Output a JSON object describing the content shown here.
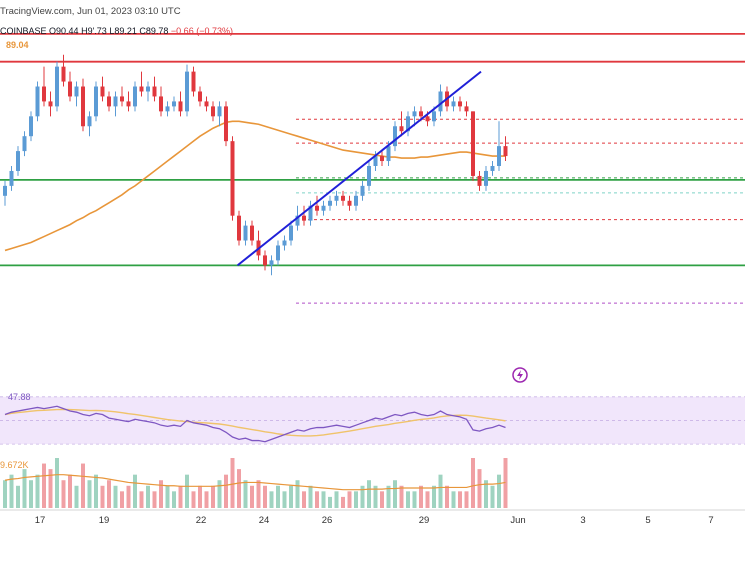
{
  "header": {
    "source_line": "TracingView.com, Jun 01, 2023 03:10 UTC",
    "symbol": "COINBASE",
    "open": "O90.44",
    "high": "H9'.73",
    "low": "L89.21",
    "close": "C89.78",
    "change": "−0.66 (−0.73%)",
    "ma_value": "89.04"
  },
  "rsi_label": "47.88",
  "volume_label": "9.672K",
  "colors": {
    "up": "#5b9bd5",
    "down": "#e0383e",
    "ma": "#e8963a",
    "trendline": "#2020d8",
    "resistance": "#e0383e",
    "support": "#2ea043",
    "rsi": "#7e57c2",
    "rsi_band": "#f1e6fb"
  },
  "chart_data": [
    {
      "type": "candlestick",
      "x_tick_labels": [
        "17",
        "19",
        "22",
        "24",
        "26",
        "29",
        "Jun",
        "3",
        "5",
        "7"
      ],
      "candles": [
        [
          84.0,
          85.5,
          83.0,
          85.0
        ],
        [
          85.0,
          87.0,
          84.5,
          86.5
        ],
        [
          86.5,
          89.0,
          86.0,
          88.5
        ],
        [
          88.5,
          90.5,
          88.0,
          90.0
        ],
        [
          90.0,
          92.5,
          89.5,
          92.0
        ],
        [
          92.0,
          95.5,
          91.5,
          95.0
        ],
        [
          95.0,
          97.0,
          93.0,
          93.5
        ],
        [
          93.5,
          94.5,
          92.0,
          93.0
        ],
        [
          93.0,
          97.5,
          92.5,
          97.0
        ],
        [
          97.0,
          98.2,
          95.0,
          95.5
        ],
        [
          95.5,
          96.5,
          93.5,
          94.0
        ],
        [
          94.0,
          95.5,
          93.0,
          95.0
        ],
        [
          95.0,
          95.8,
          90.5,
          91.0
        ],
        [
          91.0,
          92.5,
          90.0,
          92.0
        ],
        [
          92.0,
          95.5,
          91.5,
          95.0
        ],
        [
          95.0,
          96.0,
          93.5,
          94.0
        ],
        [
          94.0,
          94.5,
          92.5,
          93.0
        ],
        [
          93.0,
          94.5,
          92.0,
          94.0
        ],
        [
          94.0,
          95.0,
          93.0,
          93.5
        ],
        [
          93.5,
          94.5,
          92.5,
          93.0
        ],
        [
          93.0,
          95.5,
          92.5,
          95.0
        ],
        [
          95.0,
          96.5,
          94.0,
          94.5
        ],
        [
          94.5,
          95.5,
          93.5,
          95.0
        ],
        [
          95.0,
          96.0,
          93.5,
          94.0
        ],
        [
          94.0,
          95.0,
          92.0,
          92.5
        ],
        [
          92.5,
          93.5,
          92.0,
          93.0
        ],
        [
          93.0,
          94.0,
          92.5,
          93.5
        ],
        [
          93.5,
          94.5,
          92.0,
          92.5
        ],
        [
          92.5,
          97.2,
          92.0,
          96.5
        ],
        [
          96.5,
          97.0,
          94.0,
          94.5
        ],
        [
          94.5,
          95.0,
          93.0,
          93.5
        ],
        [
          93.5,
          94.0,
          92.5,
          93.0
        ],
        [
          93.0,
          93.5,
          91.5,
          92.0
        ],
        [
          92.0,
          93.5,
          91.0,
          93.0
        ],
        [
          93.0,
          93.5,
          89.0,
          89.5
        ],
        [
          89.5,
          90.0,
          81.5,
          82.0
        ],
        [
          82.0,
          82.5,
          79.0,
          79.5
        ],
        [
          79.5,
          81.5,
          79.0,
          81.0
        ],
        [
          81.0,
          81.5,
          79.0,
          79.5
        ],
        [
          79.5,
          80.5,
          77.5,
          78.0
        ],
        [
          78.0,
          78.5,
          76.5,
          77.0
        ],
        [
          77.0,
          78.0,
          76.0,
          77.5
        ],
        [
          77.5,
          79.5,
          77.0,
          79.0
        ],
        [
          79.0,
          80.0,
          78.5,
          79.5
        ],
        [
          79.5,
          81.5,
          79.0,
          81.0
        ],
        [
          81.0,
          83.0,
          80.5,
          82.0
        ],
        [
          82.0,
          83.0,
          81.0,
          81.5
        ],
        [
          81.5,
          83.5,
          81.0,
          83.0
        ],
        [
          83.0,
          84.0,
          82.0,
          82.5
        ],
        [
          82.5,
          83.5,
          82.0,
          83.0
        ],
        [
          83.0,
          84.0,
          82.5,
          83.5
        ],
        [
          83.5,
          84.5,
          83.0,
          84.0
        ],
        [
          84.0,
          84.5,
          83.0,
          83.5
        ],
        [
          83.5,
          84.0,
          82.5,
          83.0
        ],
        [
          83.0,
          84.5,
          82.5,
          84.0
        ],
        [
          84.0,
          85.5,
          83.5,
          85.0
        ],
        [
          85.0,
          87.5,
          84.5,
          87.0
        ],
        [
          87.0,
          88.5,
          86.5,
          88.0
        ],
        [
          88.0,
          88.5,
          87.0,
          87.5
        ],
        [
          87.5,
          89.5,
          87.0,
          89.0
        ],
        [
          89.0,
          91.5,
          88.5,
          91.0
        ],
        [
          91.0,
          92.5,
          90.0,
          90.5
        ],
        [
          90.5,
          92.5,
          90.0,
          92.0
        ],
        [
          92.0,
          93.0,
          91.0,
          92.5
        ],
        [
          92.5,
          93.0,
          91.5,
          92.0
        ],
        [
          92.0,
          92.5,
          91.0,
          91.5
        ],
        [
          91.5,
          93.0,
          91.0,
          92.5
        ],
        [
          92.5,
          95.2,
          92.0,
          94.5
        ],
        [
          94.5,
          95.0,
          92.5,
          93.0
        ],
        [
          93.0,
          94.0,
          92.5,
          93.5
        ],
        [
          93.5,
          94.0,
          92.5,
          93.0
        ],
        [
          93.0,
          93.5,
          92.0,
          92.5
        ],
        [
          92.5,
          92.5,
          85.5,
          86.0
        ],
        [
          86.0,
          86.5,
          84.5,
          85.0
        ],
        [
          85.0,
          87.0,
          84.5,
          86.5
        ],
        [
          86.5,
          87.5,
          86.0,
          87.0
        ],
        [
          87.0,
          91.5,
          86.5,
          89.0
        ],
        [
          89.0,
          90.0,
          87.5,
          88.0
        ]
      ],
      "moving_average": [
        78.5,
        78.7,
        78.9,
        79.1,
        79.3,
        79.6,
        79.9,
        80.2,
        80.5,
        80.8,
        81.1,
        81.5,
        81.8,
        82.2,
        82.5,
        82.9,
        83.3,
        83.7,
        84.1,
        84.6,
        85.0,
        85.5,
        86.0,
        86.5,
        87.0,
        87.5,
        88.0,
        88.5,
        89.0,
        89.5,
        90.0,
        90.4,
        90.8,
        91.1,
        91.4,
        91.5,
        91.5,
        91.4,
        91.3,
        91.2,
        91.0,
        90.8,
        90.6,
        90.4,
        90.2,
        90.0,
        89.8,
        89.6,
        89.4,
        89.2,
        89.0,
        88.8,
        88.6,
        88.5,
        88.4,
        88.3,
        88.2,
        88.1,
        88.0,
        87.9,
        87.9,
        87.8,
        87.8,
        87.8,
        87.9,
        87.9,
        88.0,
        88.1,
        88.2,
        88.3,
        88.4,
        88.4,
        88.3,
        88.2,
        88.1,
        88.0,
        88.0,
        88.0
      ],
      "horizontal_levels": [
        {
          "price": 100.3,
          "style": "solid",
          "color": "#e0383e"
        },
        {
          "price": 97.5,
          "style": "solid",
          "color": "#e0383e"
        },
        {
          "price": 85.6,
          "style": "solid",
          "color": "#2ea043"
        },
        {
          "price": 77.0,
          "style": "solid",
          "color": "#2ea043"
        },
        {
          "price": 91.7,
          "style": "dashed",
          "color": "#e0383e"
        },
        {
          "price": 89.3,
          "style": "dashed",
          "color": "#e0383e"
        },
        {
          "price": 85.8,
          "style": "dashed",
          "color": "#2ea043"
        },
        {
          "price": 84.3,
          "style": "dashed",
          "color": "#7fd3c8"
        },
        {
          "price": 81.6,
          "style": "dashed",
          "color": "#e0383e"
        },
        {
          "price": 73.2,
          "style": "dashed",
          "color": "#b04fc8"
        }
      ],
      "trendline": {
        "from": {
          "bar": 37,
          "price": 77.0
        },
        "to": {
          "bar": 72,
          "price": 96.5
        }
      },
      "price_range": [
        71.5,
        102.5
      ],
      "rsi": [
        55,
        57,
        58,
        59,
        60,
        61,
        60,
        61,
        62,
        60,
        58,
        57,
        55,
        54,
        56,
        55,
        52,
        51,
        50,
        49,
        51,
        50,
        49,
        48,
        46,
        45,
        46,
        45,
        50,
        48,
        47,
        46,
        44,
        43,
        40,
        36,
        34,
        35,
        33,
        33,
        32,
        34,
        36,
        38,
        40,
        42,
        41,
        43,
        44,
        44,
        45,
        46,
        45,
        44,
        46,
        48,
        50,
        52,
        51,
        53,
        55,
        54,
        56,
        57,
        55,
        54,
        55,
        58,
        55,
        54,
        53,
        51,
        42,
        41,
        43,
        44,
        46,
        44
      ],
      "rsi_range": [
        25,
        80
      ],
      "rsi_band": [
        30,
        70
      ],
      "volume": [
        5,
        6,
        4,
        7,
        5,
        6,
        8,
        7,
        9,
        5,
        6,
        4,
        8,
        5,
        6,
        4,
        5,
        4,
        3,
        4,
        6,
        3,
        4,
        3,
        5,
        4,
        3,
        4,
        6,
        3,
        4,
        3,
        4,
        5,
        6,
        9,
        7,
        5,
        4,
        5,
        4,
        3,
        4,
        3,
        4,
        5,
        3,
        4,
        3,
        3,
        2,
        3,
        2,
        3,
        3,
        4,
        5,
        4,
        3,
        4,
        5,
        4,
        3,
        3,
        4,
        3,
        4,
        6,
        4,
        3,
        3,
        3,
        9,
        7,
        5,
        4,
        6,
        9
      ],
      "volume_ma": [
        5,
        5.2,
        5.3,
        5.5,
        5.6,
        5.7,
        5.8,
        5.9,
        6.0,
        6.0,
        5.9,
        5.8,
        5.7,
        5.6,
        5.5,
        5.4,
        5.2,
        5.0,
        4.8,
        4.6,
        4.5,
        4.4,
        4.3,
        4.2,
        4.1,
        4.0,
        4.0,
        3.9,
        3.9,
        3.9,
        3.9,
        3.9,
        3.9,
        4.0,
        4.1,
        4.3,
        4.5,
        4.6,
        4.6,
        4.6,
        4.5,
        4.4,
        4.3,
        4.2,
        4.1,
        4.0,
        3.9,
        3.8,
        3.7,
        3.6,
        3.5,
        3.4,
        3.3,
        3.3,
        3.3,
        3.3,
        3.4,
        3.4,
        3.4,
        3.5,
        3.5,
        3.6,
        3.6,
        3.6,
        3.6,
        3.6,
        3.6,
        3.7,
        3.7,
        3.7,
        3.7,
        3.7,
        4.0,
        4.2,
        4.3,
        4.3,
        4.4,
        4.6
      ]
    }
  ]
}
